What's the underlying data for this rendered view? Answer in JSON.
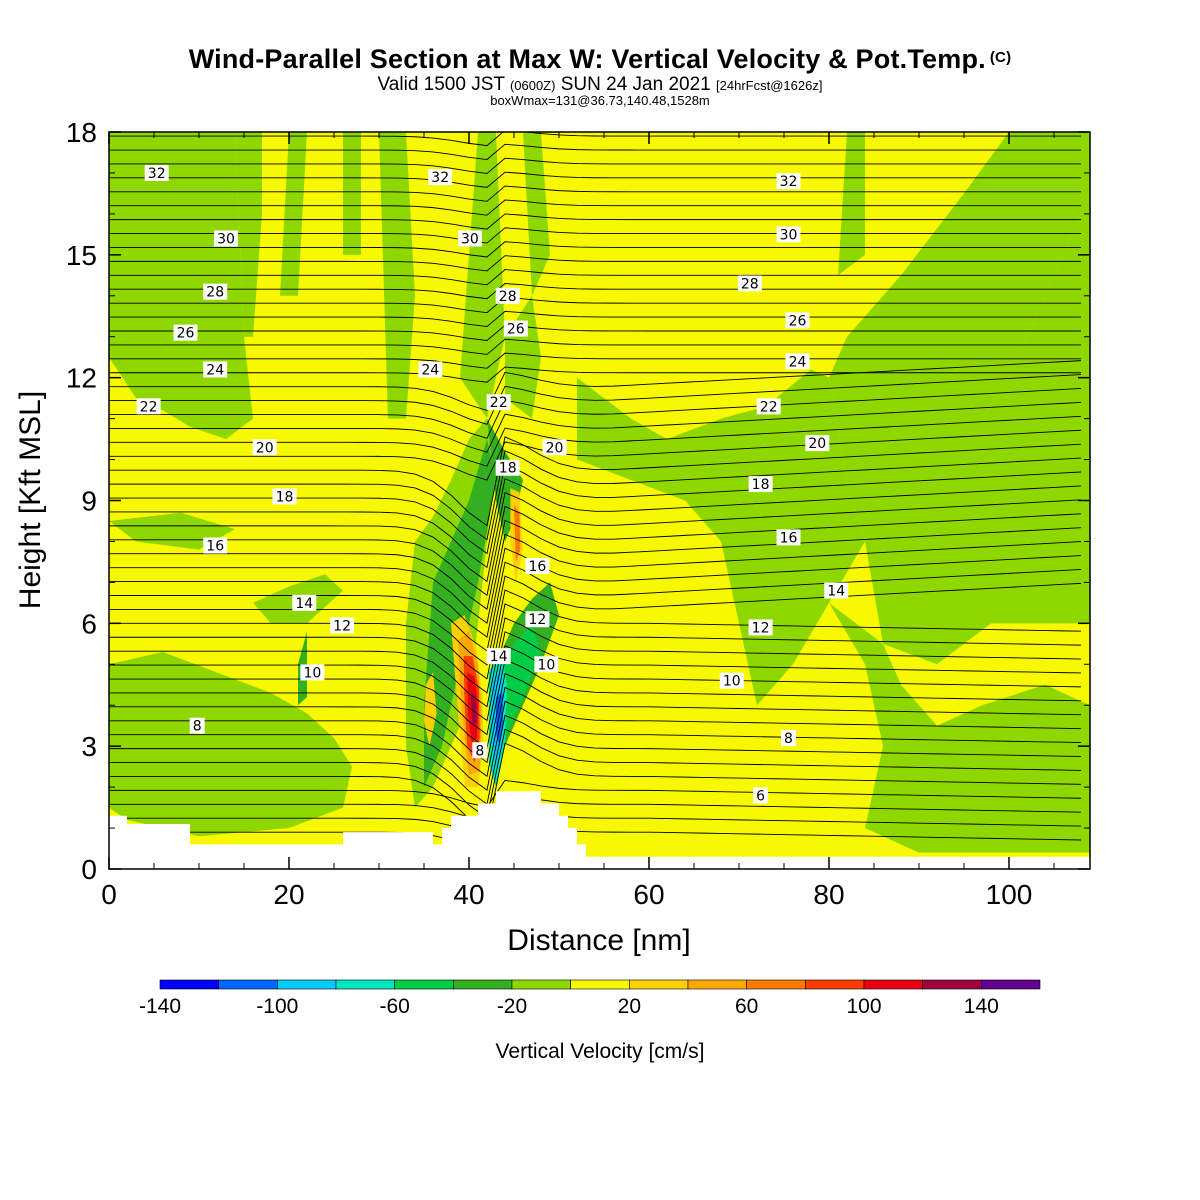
{
  "title": {
    "main": "Wind-Parallel Section at Max W: Vertical Velocity & Pot.Temp.",
    "copyright": "(C)",
    "valid_prefix": "Valid 1500 JST",
    "valid_z": "(0600Z)",
    "valid_date": "SUN 24 Jan 2021",
    "fcst": "[24hrFcst@1626z]",
    "boxwmax": "boxWmax=131@36.73,140.48,1528m"
  },
  "chart_data": {
    "type": "heatmap",
    "description_fields": "filled contours of vertical velocity with potential temperature contour lines",
    "xlabel": "Distance [nm]",
    "ylabel": "Height [Kft MSL]",
    "xlim": [
      0,
      109
    ],
    "ylim": [
      0,
      18
    ],
    "xticks": [
      0,
      20,
      40,
      60,
      80,
      100
    ],
    "yticks": [
      0,
      3,
      6,
      9,
      12,
      15,
      18
    ],
    "colorbar": {
      "label": "Vertical Velocity [cm/s]",
      "bounds": [
        -140,
        -120,
        -100,
        -80,
        -60,
        -40,
        -20,
        0,
        20,
        40,
        60,
        80,
        100,
        120,
        140,
        160
      ],
      "tick_labels": [
        "-140",
        "-100",
        "-60",
        "-20",
        "20",
        "60",
        "100",
        "140"
      ],
      "tick_values": [
        -140,
        -100,
        -60,
        -20,
        20,
        60,
        100,
        140
      ],
      "colors": [
        "#0000ff",
        "#0066ff",
        "#00ccff",
        "#00e6c0",
        "#00cc44",
        "#33b020",
        "#8ed800",
        "#f8f800",
        "#ffd000",
        "#ffa800",
        "#ff7800",
        "#ff3c00",
        "#e80010",
        "#a00040",
        "#640090"
      ]
    },
    "theta_contours": {
      "levels": [
        6,
        8,
        10,
        12,
        14,
        16,
        18,
        20,
        22,
        24,
        26,
        28,
        30,
        32
      ],
      "labels": [
        {
          "text": "32",
          "x": 5.3,
          "y": 17.0
        },
        {
          "text": "30",
          "x": 13.0,
          "y": 15.4
        },
        {
          "text": "28",
          "x": 11.8,
          "y": 14.1
        },
        {
          "text": "26",
          "x": 8.5,
          "y": 13.1
        },
        {
          "text": "24",
          "x": 11.8,
          "y": 12.2
        },
        {
          "text": "22",
          "x": 4.4,
          "y": 11.3
        },
        {
          "text": "20",
          "x": 17.3,
          "y": 10.3
        },
        {
          "text": "18",
          "x": 19.5,
          "y": 9.1
        },
        {
          "text": "16",
          "x": 11.8,
          "y": 7.9
        },
        {
          "text": "14",
          "x": 21.7,
          "y": 6.5
        },
        {
          "text": "12",
          "x": 25.9,
          "y": 5.95
        },
        {
          "text": "10",
          "x": 22.6,
          "y": 4.8
        },
        {
          "text": "8",
          "x": 9.8,
          "y": 3.5
        },
        {
          "text": "32",
          "x": 36.8,
          "y": 16.9
        },
        {
          "text": "30",
          "x": 40.1,
          "y": 15.4
        },
        {
          "text": "28",
          "x": 44.3,
          "y": 14.0
        },
        {
          "text": "26",
          "x": 45.2,
          "y": 13.2
        },
        {
          "text": "24",
          "x": 35.7,
          "y": 12.2
        },
        {
          "text": "22",
          "x": 43.3,
          "y": 11.4
        },
        {
          "text": "20",
          "x": 49.5,
          "y": 10.3
        },
        {
          "text": "18",
          "x": 44.3,
          "y": 9.8
        },
        {
          "text": "16",
          "x": 47.6,
          "y": 7.4
        },
        {
          "text": "14",
          "x": 43.3,
          "y": 5.2
        },
        {
          "text": "12",
          "x": 47.6,
          "y": 6.1
        },
        {
          "text": "10",
          "x": 48.6,
          "y": 5.0
        },
        {
          "text": "8",
          "x": 41.2,
          "y": 2.9
        },
        {
          "text": "32",
          "x": 75.5,
          "y": 16.8
        },
        {
          "text": "30",
          "x": 75.5,
          "y": 15.5
        },
        {
          "text": "28",
          "x": 71.2,
          "y": 14.3
        },
        {
          "text": "26",
          "x": 76.5,
          "y": 13.4
        },
        {
          "text": "24",
          "x": 76.5,
          "y": 12.4
        },
        {
          "text": "22",
          "x": 73.3,
          "y": 11.3
        },
        {
          "text": "20",
          "x": 78.7,
          "y": 10.4
        },
        {
          "text": "18",
          "x": 72.4,
          "y": 9.4
        },
        {
          "text": "16",
          "x": 75.5,
          "y": 8.1
        },
        {
          "text": "14",
          "x": 80.8,
          "y": 6.8
        },
        {
          "text": "12",
          "x": 72.4,
          "y": 5.9
        },
        {
          "text": "10",
          "x": 69.2,
          "y": 4.6
        },
        {
          "text": "8",
          "x": 75.5,
          "y": 3.2
        },
        {
          "text": "6",
          "x": 72.4,
          "y": 1.8
        }
      ]
    },
    "terrain_profile": [
      [
        0,
        1.3
      ],
      [
        2,
        1.3
      ],
      [
        2,
        1.1
      ],
      [
        9,
        1.1
      ],
      [
        9,
        0.6
      ],
      [
        26,
        0.6
      ],
      [
        26,
        0.9
      ],
      [
        36,
        0.9
      ],
      [
        36,
        0.6
      ],
      [
        37,
        0.6
      ],
      [
        37,
        1.0
      ],
      [
        38,
        1.0
      ],
      [
        38,
        1.3
      ],
      [
        41,
        1.3
      ],
      [
        41,
        1.6
      ],
      [
        43,
        1.6
      ],
      [
        43,
        1.9
      ],
      [
        48,
        1.9
      ],
      [
        48,
        1.6
      ],
      [
        50,
        1.6
      ],
      [
        50,
        1.3
      ],
      [
        51,
        1.3
      ],
      [
        51,
        1.0
      ],
      [
        52,
        1.0
      ],
      [
        52,
        0.6
      ],
      [
        53,
        0.6
      ],
      [
        53,
        0.3
      ],
      [
        109,
        0.3
      ]
    ]
  }
}
